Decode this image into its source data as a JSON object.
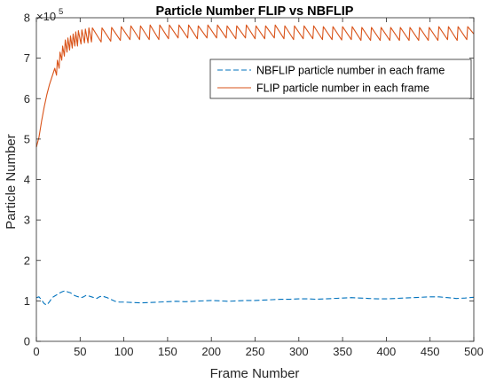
{
  "chart_data": {
    "type": "line",
    "title": "Particle Number FLIP vs NBFLIP",
    "xlabel": "Frame Number",
    "ylabel": "Particle Number",
    "y_exponent_base": "×10",
    "y_exponent_power": "5",
    "xlim": [
      0,
      500
    ],
    "ylim": [
      0,
      8
    ],
    "y_scale_factor": 100000,
    "xticks": [
      "0",
      "50",
      "100",
      "150",
      "200",
      "250",
      "300",
      "350",
      "400",
      "450",
      "500"
    ],
    "yticks": [
      "0",
      "1",
      "2",
      "3",
      "4",
      "5",
      "6",
      "7",
      "8"
    ],
    "grid": false,
    "legend_position": "top-right",
    "series": [
      {
        "name": "NBFLIP particle number in each frame",
        "style": "dashed",
        "color": "#0072BD",
        "x": [
          0,
          3,
          6,
          9,
          12,
          15,
          18,
          21,
          24,
          27,
          30,
          33,
          36,
          39,
          42,
          45,
          48,
          51,
          54,
          57,
          60,
          63,
          66,
          69,
          72,
          75,
          78,
          81,
          84,
          87,
          90,
          95,
          100,
          110,
          120,
          130,
          140,
          150,
          160,
          170,
          180,
          190,
          200,
          210,
          220,
          230,
          240,
          250,
          260,
          270,
          280,
          290,
          300,
          310,
          320,
          330,
          340,
          350,
          360,
          370,
          380,
          390,
          400,
          410,
          420,
          430,
          440,
          450,
          460,
          470,
          480,
          490,
          500
        ],
        "y": [
          1.08,
          1.1,
          1.02,
          0.93,
          0.9,
          0.98,
          1.08,
          1.12,
          1.16,
          1.2,
          1.23,
          1.25,
          1.22,
          1.2,
          1.15,
          1.12,
          1.1,
          1.08,
          1.1,
          1.14,
          1.12,
          1.1,
          1.08,
          1.06,
          1.1,
          1.12,
          1.1,
          1.08,
          1.05,
          1.02,
          0.99,
          0.97,
          0.97,
          0.96,
          0.95,
          0.96,
          0.97,
          0.98,
          0.99,
          0.98,
          0.99,
          1.0,
          1.01,
          1.0,
          0.99,
          1.0,
          1.01,
          1.01,
          1.02,
          1.03,
          1.04,
          1.04,
          1.05,
          1.05,
          1.04,
          1.05,
          1.06,
          1.07,
          1.08,
          1.07,
          1.06,
          1.05,
          1.05,
          1.06,
          1.07,
          1.08,
          1.09,
          1.1,
          1.1,
          1.08,
          1.06,
          1.07,
          1.09
        ]
      },
      {
        "name": "FLIP particle number in each frame",
        "style": "solid",
        "color": "#D95319",
        "x": [
          0,
          3,
          6,
          9,
          12,
          15,
          18,
          21,
          23,
          24,
          26,
          27,
          29,
          30,
          32,
          33,
          35,
          36,
          38,
          39,
          41,
          42,
          44,
          45,
          47,
          48,
          51,
          52,
          55,
          56,
          59,
          60,
          63,
          64,
          74,
          75,
          85,
          86,
          96,
          97,
          107,
          108,
          118,
          119,
          129,
          130,
          140,
          141,
          151,
          152,
          162,
          163,
          173,
          174,
          184,
          185,
          195,
          196,
          206,
          207,
          217,
          218,
          228,
          229,
          239,
          240,
          250,
          251,
          261,
          262,
          272,
          273,
          283,
          284,
          294,
          295,
          305,
          306,
          316,
          317,
          327,
          328,
          338,
          339,
          349,
          350,
          360,
          361,
          371,
          372,
          382,
          383,
          393,
          394,
          404,
          405,
          415,
          416,
          426,
          427,
          437,
          438,
          448,
          449,
          459,
          460,
          470,
          471,
          481,
          482,
          492,
          493,
          500
        ],
        "y": [
          4.8,
          5.05,
          5.45,
          5.8,
          6.1,
          6.35,
          6.55,
          6.75,
          6.58,
          6.95,
          6.75,
          7.15,
          6.95,
          7.3,
          7.05,
          7.45,
          7.15,
          7.5,
          7.2,
          7.55,
          7.25,
          7.6,
          7.3,
          7.65,
          7.3,
          7.68,
          7.35,
          7.7,
          7.38,
          7.72,
          7.38,
          7.75,
          7.4,
          7.75,
          7.4,
          7.75,
          7.42,
          7.76,
          7.44,
          7.78,
          7.46,
          7.8,
          7.46,
          7.8,
          7.46,
          7.82,
          7.46,
          7.82,
          7.48,
          7.82,
          7.5,
          7.82,
          7.5,
          7.82,
          7.48,
          7.8,
          7.5,
          7.82,
          7.5,
          7.82,
          7.5,
          7.8,
          7.48,
          7.8,
          7.5,
          7.82,
          7.48,
          7.8,
          7.48,
          7.8,
          7.5,
          7.82,
          7.48,
          7.8,
          7.46,
          7.8,
          7.48,
          7.8,
          7.48,
          7.8,
          7.46,
          7.78,
          7.46,
          7.78,
          7.45,
          7.78,
          7.46,
          7.78,
          7.44,
          7.76,
          7.44,
          7.76,
          7.44,
          7.76,
          7.44,
          7.76,
          7.44,
          7.76,
          7.44,
          7.76,
          7.44,
          7.76,
          7.44,
          7.76,
          7.44,
          7.78,
          7.46,
          7.78,
          7.44,
          7.78,
          7.46,
          7.78,
          7.6
        ]
      }
    ]
  }
}
